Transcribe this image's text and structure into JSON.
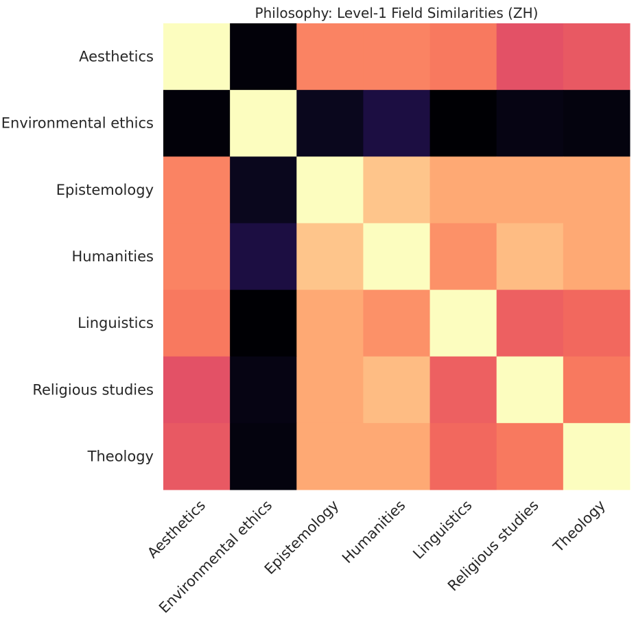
{
  "chart_data": {
    "type": "heatmap",
    "title": "Philosophy: Level-1 Field Similarities (ZH)",
    "xlabel": "",
    "ylabel": "",
    "x_categories": [
      "Aesthetics",
      "Environmental ethics",
      "Epistemology",
      "Humanities",
      "Linguistics",
      "Religious studies",
      "Theology"
    ],
    "y_categories": [
      "Aesthetics",
      "Environmental ethics",
      "Epistemology",
      "Humanities",
      "Linguistics",
      "Religious studies",
      "Theology"
    ],
    "colormap": "magma",
    "value_range": [
      0,
      1
    ],
    "values": [
      [
        1.0,
        0.01,
        0.74,
        0.74,
        0.72,
        0.62,
        0.64
      ],
      [
        0.01,
        1.0,
        0.05,
        0.12,
        0.0,
        0.03,
        0.02
      ],
      [
        0.74,
        0.05,
        1.0,
        0.88,
        0.82,
        0.82,
        0.82
      ],
      [
        0.74,
        0.12,
        0.88,
        1.0,
        0.77,
        0.86,
        0.82
      ],
      [
        0.72,
        0.0,
        0.82,
        0.77,
        1.0,
        0.66,
        0.68
      ],
      [
        0.62,
        0.03,
        0.82,
        0.86,
        0.66,
        1.0,
        0.72
      ],
      [
        0.64,
        0.02,
        0.82,
        0.82,
        0.68,
        0.72,
        1.0
      ]
    ],
    "grid": false,
    "legend": "none"
  }
}
